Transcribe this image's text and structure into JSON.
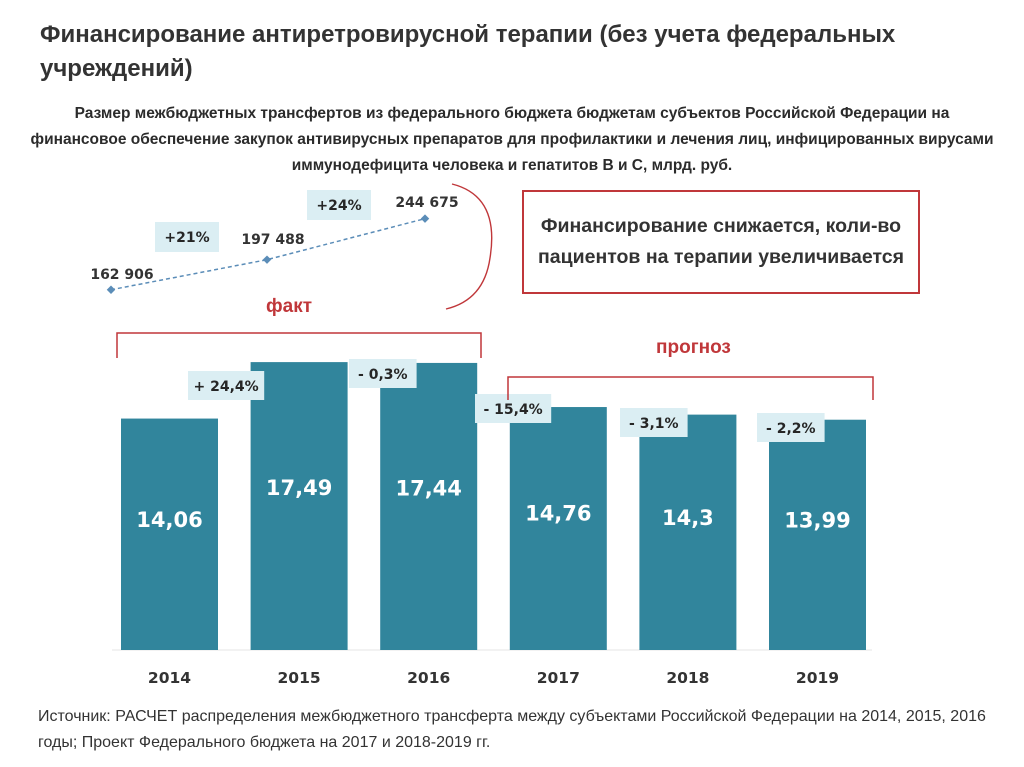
{
  "title": "Финансирование антиретровирусной терапии (без учета федеральных учреждений)",
  "subtitle": "Размер межбюджетных трансфертов из федерального бюджета бюджетам субъектов Российской Федерации на финансовое обеспечение закупок антивирусных препаратов для профилактики и лечения лиц, инфицированных вирусами иммунодефицита человека и гепатитов B и C, млрд. руб.",
  "callout": "Финансирование снижается, коли-во пациентов на терапии увеличивается",
  "fact_label": "факт",
  "forecast_label": "прогноз",
  "source": "Источник: РАСЧЕТ  распределения межбюджетного трансферта между субъектами Российской Федерации  на 2014, 2015, 2016 годы; Проект Федерального бюджета на 2017 и 2018-2019 гг.",
  "colors": {
    "bar": "#31859c",
    "accent": "#c0373a",
    "label_box": "#dbeef3",
    "line": "#5b8db8"
  },
  "chart_data": [
    {
      "type": "bar",
      "categories": [
        "2014",
        "2015",
        "2016",
        "2017",
        "2018",
        "2019"
      ],
      "values": [
        14.06,
        17.49,
        17.44,
        14.76,
        14.3,
        13.99
      ],
      "value_labels": [
        "14,06",
        "17,49",
        "17,44",
        "14,76",
        "14,3",
        "13,99"
      ],
      "change_labels": [
        "",
        "+ 24,4%",
        "- 0,3%",
        "- 15,4%",
        "- 3,1%",
        "- 2,2%"
      ],
      "ylim": [
        0,
        18
      ],
      "groups": [
        {
          "label": "факт",
          "categories": [
            "2014",
            "2015",
            "2016"
          ]
        },
        {
          "label": "прогноз",
          "categories": [
            "2017",
            "2018",
            "2019"
          ]
        }
      ]
    },
    {
      "type": "line",
      "values": [
        162906,
        197488,
        244675
      ],
      "value_labels": [
        "162 906",
        "197 488",
        "244 675"
      ],
      "change_labels": [
        "+21%",
        "+24%"
      ]
    }
  ]
}
